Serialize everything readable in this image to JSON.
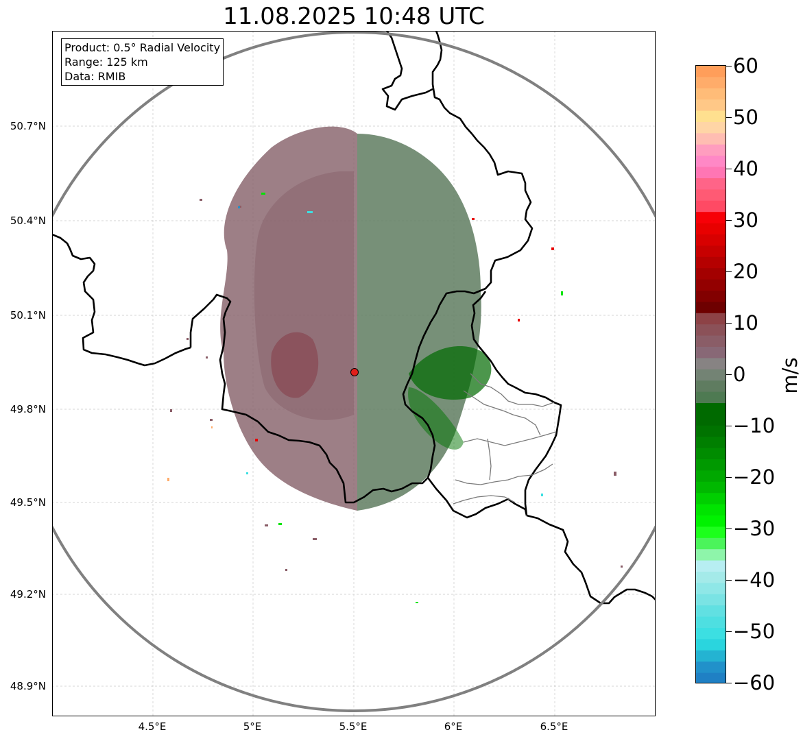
{
  "title": "11.08.2025 10:48 UTC",
  "info": {
    "product": "Product: 0.5° Radial Velocity",
    "range": "Range: 125 km",
    "data": "Data: RMIB"
  },
  "axes": {
    "lat_labels": [
      "50.7°N",
      "50.4°N",
      "50.1°N",
      "49.8°N",
      "49.5°N",
      "49.2°N",
      "48.9°N"
    ],
    "lon_labels": [
      "4.5°E",
      "5°E",
      "5.5°E",
      "6°E",
      "6.5°E"
    ],
    "grid": true
  },
  "radar": {
    "site_marker_color": "#e0201b",
    "range_ring_color": "#808080"
  },
  "colorbar": {
    "unit": "m/s",
    "ticks": [
      "60",
      "50",
      "40",
      "30",
      "20",
      "10",
      "0",
      "−10",
      "−20",
      "−30",
      "−40",
      "−50",
      "−60"
    ],
    "range": [
      -60,
      60
    ],
    "colors_top_to_bottom": [
      "#ff9e5a",
      "#ffac6a",
      "#ffbc78",
      "#ffc887",
      "#ffe08f",
      "#ffd5a6",
      "#ffbdb2",
      "#ff9dbf",
      "#ff88c6",
      "#ff76b4",
      "#ff6488",
      "#ff5a74",
      "#ff4a64",
      "#f70007",
      "#e80000",
      "#d80000",
      "#c70000",
      "#b50000",
      "#a30000",
      "#930000",
      "#820000",
      "#6e0000",
      "#8d4246",
      "#8b5158",
      "#8a5d67",
      "#886876",
      "#878383",
      "#738374",
      "#5f7c60",
      "#4e7a52",
      "#006a00",
      "#006a00",
      "#007300",
      "#007f00",
      "#008c00",
      "#009900",
      "#00a800",
      "#00b800",
      "#00cf00",
      "#00e400",
      "#00f200",
      "#1cff1c",
      "#4bf45b",
      "#8ef5aa",
      "#b7eef2",
      "#a4eae9",
      "#8fe7e7",
      "#7ae3e4",
      "#61e0e2",
      "#4edfe1",
      "#3cdfe2",
      "#2ad5de",
      "#24b3d2",
      "#2191ca",
      "#1f80c4"
    ]
  }
}
